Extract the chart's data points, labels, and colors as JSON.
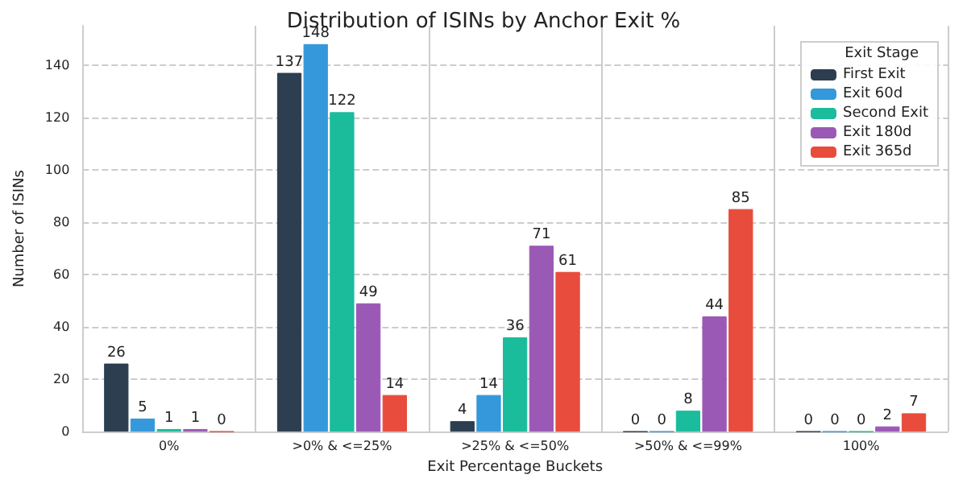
{
  "chart_data": {
    "type": "bar",
    "title": "Distribution of ISINs by Anchor Exit %",
    "xlabel": "Exit Percentage Buckets",
    "ylabel": "Number of ISINs",
    "legend_title": "Exit Stage",
    "categories": [
      "0%",
      ">0% & <=25%",
      ">25% & <=50%",
      ">50% & <=99%",
      "100%"
    ],
    "series": [
      {
        "name": "First Exit",
        "color": "#2c3e50",
        "values": [
          26,
          137,
          4,
          0,
          0
        ]
      },
      {
        "name": "Exit 60d",
        "color": "#3498db",
        "values": [
          5,
          148,
          14,
          0,
          0
        ]
      },
      {
        "name": "Second Exit",
        "color": "#1abc9c",
        "values": [
          1,
          122,
          36,
          8,
          0
        ]
      },
      {
        "name": "Exit 180d",
        "color": "#9b59b6",
        "values": [
          1,
          49,
          71,
          44,
          2
        ]
      },
      {
        "name": "Exit 365d",
        "color": "#e74c3c",
        "values": [
          0,
          14,
          61,
          85,
          7
        ]
      }
    ],
    "ylim": [
      0,
      155
    ],
    "yticks": [
      0,
      20,
      40,
      60,
      80,
      100,
      120,
      140
    ],
    "grid": true,
    "legend": "top right",
    "data_labels": true
  }
}
